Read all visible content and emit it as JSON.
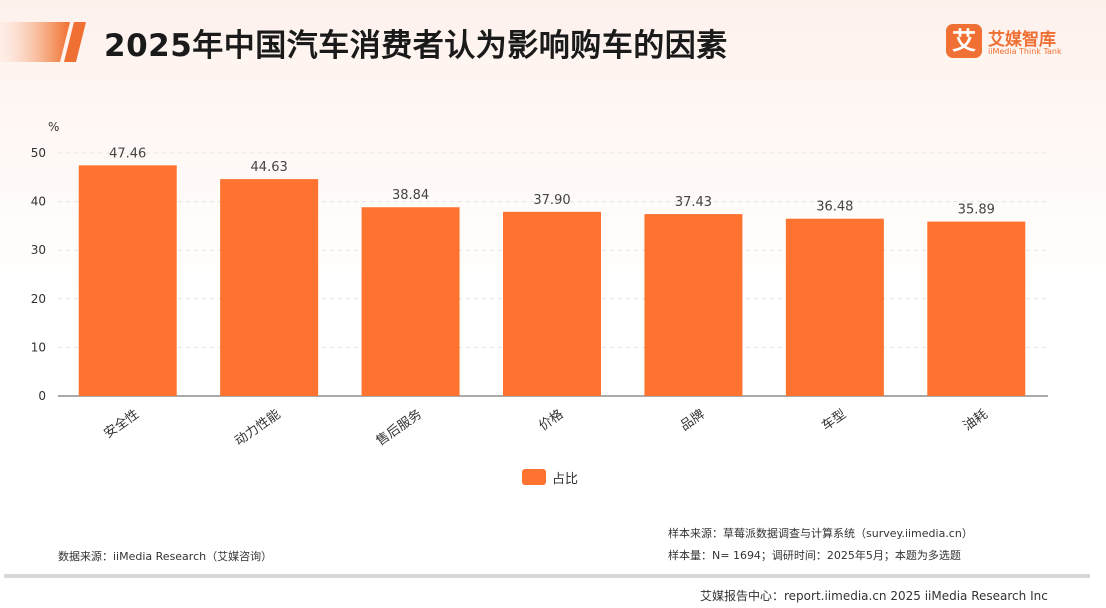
{
  "header": {
    "title": "2025年中国汽车消费者认为影响购车的因素",
    "logo_mark": "艾",
    "logo_name": "艾媒智库",
    "logo_sub": "iiMedia Think Tank",
    "accent_color": "#f07033"
  },
  "chart_data": {
    "type": "bar",
    "title": "2025年中国汽车消费者认为影响购车的因素",
    "ylabel": "%",
    "xlabel": "",
    "ylim": [
      0,
      50
    ],
    "yticks": [
      0,
      10,
      20,
      30,
      40,
      50
    ],
    "grid": true,
    "legend_position": "bottom",
    "categories": [
      "安全性",
      "动力性能",
      "售后服务",
      "价格",
      "品牌",
      "车型",
      "油耗"
    ],
    "series": [
      {
        "name": "占比",
        "color": "#ff7330",
        "values": [
          47.46,
          44.63,
          38.84,
          37.9,
          37.43,
          36.48,
          35.89
        ]
      }
    ],
    "value_labels": [
      "47.46",
      "44.63",
      "38.84",
      "37.90",
      "37.43",
      "36.48",
      "35.89"
    ]
  },
  "footer": {
    "data_source": "数据来源：iiMedia Research（艾媒咨询）",
    "sample_source": "样本来源：草莓派数据调查与计算系统（survey.iimedia.cn）",
    "sample_size": "样本量：N= 1694；调研时间：2025年5月；本题为多选题",
    "copyright": "艾媒报告中心：report.iimedia.cn   2025 iiMedia Research Inc"
  }
}
